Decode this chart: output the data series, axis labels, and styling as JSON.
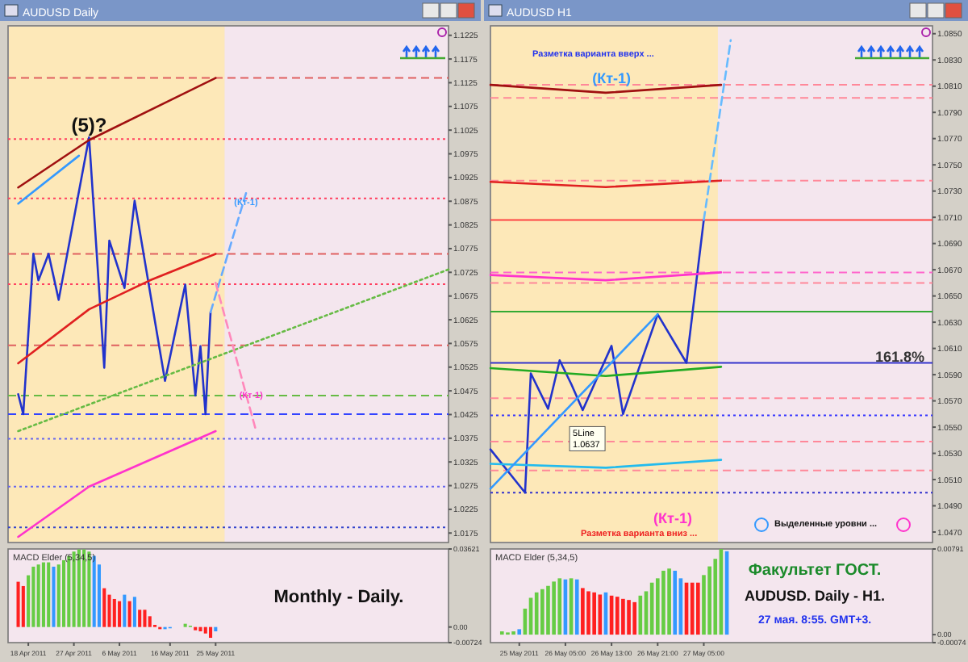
{
  "chart_data": [
    {
      "type": "line",
      "title": "AUDUSD Daily",
      "xlim": [
        "2011-04-14",
        "2011-07-10"
      ],
      "ylim": [
        1.0155,
        1.1245
      ],
      "tick_labels": "y",
      "yticks": [
        1.0175,
        1.0225,
        1.0275,
        1.0325,
        1.0375,
        1.0425,
        1.0475,
        1.0525,
        1.0575,
        1.0625,
        1.0675,
        1.0725,
        1.0775,
        1.0825,
        1.0875,
        1.0925,
        1.0975,
        1.1025,
        1.1075,
        1.1125,
        1.1175,
        1.1225
      ],
      "series": [
        {
          "color": "#2233cc",
          "x": [
            "2011-04-16",
            "2011-04-17",
            "2011-04-19",
            "2011-04-20",
            "2011-04-22",
            "2011-04-24",
            "2011-04-30",
            "2011-05-03",
            "2011-05-04",
            "2011-05-07",
            "2011-05-09",
            "2011-05-15",
            "2011-05-19",
            "2011-05-21",
            "2011-05-22",
            "2011-05-23",
            "2011-05-24"
          ],
          "values": [
            1.0468,
            1.0426,
            1.0764,
            1.0708,
            1.0764,
            1.0667,
            1.101,
            1.0524,
            1.0792,
            1.0692,
            1.0876,
            1.0496,
            1.0699,
            1.0465,
            1.0569,
            1.0426,
            1.0641
          ]
        },
        {
          "color": "#a01010",
          "x": [
            "2011-04-16",
            "2011-04-30",
            "2011-05-25"
          ],
          "values": [
            1.0904,
            1.1004,
            1.1135
          ]
        },
        {
          "color": "#e02020",
          "x": [
            "2011-04-16",
            "2011-04-30",
            "2011-05-12",
            "2011-05-25"
          ],
          "values": [
            1.0533,
            1.0647,
            1.0708,
            1.0764
          ]
        },
        {
          "color": "#ff33cc",
          "x": [
            "2011-04-16",
            "2011-04-30",
            "2011-05-25"
          ],
          "values": [
            1.0167,
            1.0273,
            1.039
          ]
        },
        {
          "color": "#66bb44",
          "line_style": "dotted",
          "x": [
            "2011-04-16",
            "2011-07-10"
          ],
          "values": [
            1.039,
            1.0731
          ]
        },
        {
          "color": "#3399ff",
          "x": [
            "2011-04-16",
            "2011-04-28"
          ],
          "values": [
            1.087,
            1.0971
          ]
        },
        {
          "color": "#66aaff",
          "line_style": "dashed",
          "x": [
            "2011-05-24",
            "2011-05-31"
          ],
          "values": [
            1.0641,
            1.0892
          ]
        },
        {
          "color": "#ff88bb",
          "line_style": "dashed",
          "x": [
            "2011-05-25",
            "2011-06-02"
          ],
          "values": [
            1.0703,
            1.039
          ]
        }
      ],
      "ref_lines": [
        {
          "axis": "y",
          "value": 1.1135,
          "color": "#e06060",
          "line_style": "dashed"
        },
        {
          "axis": "y",
          "value": 1.1006,
          "color": "#ff4060",
          "line_style": "dotted"
        },
        {
          "axis": "y",
          "value": 1.0881,
          "color": "#ff4060",
          "line_style": "dotted"
        },
        {
          "axis": "y",
          "value": 1.0764,
          "color": "#e06060",
          "line_style": "dashed"
        },
        {
          "axis": "y",
          "value": 1.07,
          "color": "#ff4060",
          "line_style": "dotted"
        },
        {
          "axis": "y",
          "value": 1.0571,
          "color": "#e06060",
          "line_style": "dashed"
        },
        {
          "axis": "y",
          "value": 1.0465,
          "color": "#66bb44",
          "line_style": "dashed"
        },
        {
          "axis": "y",
          "value": 1.0426,
          "color": "#3344ff",
          "line_style": "dashed"
        },
        {
          "axis": "y",
          "value": 1.0374,
          "color": "#6666ee",
          "line_style": "dotted"
        },
        {
          "axis": "y",
          "value": 1.0273,
          "color": "#6666ee",
          "line_style": "dotted"
        },
        {
          "axis": "y",
          "value": 1.0187,
          "color": "#3344cc",
          "line_style": "dotted"
        }
      ],
      "annotations": [
        {
          "text": "(5)?",
          "x": "2011-04-30",
          "y": 1.101
        },
        {
          "text": "(Кт-1)",
          "x": "2011-05-31",
          "y": 1.0862
        },
        {
          "text": "(Кт-1)",
          "x": "2011-06-01",
          "y": 1.0455
        }
      ]
    },
    {
      "type": "line",
      "title": "AUDUSD H1",
      "xlim": [
        "2011-05-25T16:00",
        "2011-05-28T20:40"
      ],
      "ylim": [
        1.0462,
        1.0856
      ],
      "tick_labels": "y",
      "yticks": [
        {
          "value": 1.047,
          "label": "1.0470"
        },
        {
          "value": 1.049,
          "label": "1.0490"
        },
        {
          "value": 1.051,
          "label": "1.0510"
        },
        {
          "value": 1.053,
          "label": "1.0530"
        },
        {
          "value": 1.055,
          "label": "1.0550"
        },
        {
          "value": 1.057,
          "label": "1.0570"
        },
        {
          "value": 1.059,
          "label": "1.0590"
        },
        {
          "value": 1.061,
          "label": "1.0610"
        },
        {
          "value": 1.063,
          "label": "1.0630"
        },
        {
          "value": 1.065,
          "label": "1.0650"
        },
        {
          "value": 1.067,
          "label": "1.0670"
        },
        {
          "value": 1.069,
          "label": "1.0690"
        },
        {
          "value": 1.071,
          "label": "1.0710"
        },
        {
          "value": 1.073,
          "label": "1.0730"
        },
        {
          "value": 1.075,
          "label": "1.0750"
        },
        {
          "value": 1.077,
          "label": "1.0770"
        },
        {
          "value": 1.079,
          "label": "1.0790"
        },
        {
          "value": 1.081,
          "label": "1.0810"
        },
        {
          "value": 1.083,
          "label": "1.0830"
        },
        {
          "value": 1.085,
          "label": "1.0850"
        }
      ],
      "series": [
        {
          "color": "#2233cc",
          "x": [
            "2011-05-25T16:00",
            "2011-05-25T22:00",
            "2011-05-25T23:00",
            "2011-05-26T02:00",
            "2011-05-26T04:00",
            "2011-05-26T06:00",
            "2011-05-26T08:00",
            "2011-05-26T13:00",
            "2011-05-26T15:00",
            "2011-05-26T21:00",
            "2011-05-27T02:00",
            "2011-05-27T05:00"
          ],
          "values": [
            1.0533,
            1.05,
            1.0591,
            1.0564,
            1.0601,
            1.0583,
            1.0563,
            1.0612,
            1.056,
            1.0636,
            1.0599,
            1.0708
          ]
        },
        {
          "color": "#a01010",
          "x": [
            "2011-05-25T16:00",
            "2011-05-26T12:00",
            "2011-05-27T08:00"
          ],
          "values": [
            1.0811,
            1.0805,
            1.0811
          ]
        },
        {
          "color": "#e02020",
          "x": [
            "2011-05-25T16:00",
            "2011-05-26T12:00",
            "2011-05-27T08:00"
          ],
          "values": [
            1.0737,
            1.0733,
            1.0738
          ]
        },
        {
          "color": "#ff33cc",
          "x": [
            "2011-05-25T16:00",
            "2011-05-26T12:00",
            "2011-05-27T08:00"
          ],
          "values": [
            1.0666,
            1.0662,
            1.0668
          ]
        },
        {
          "color": "#22aa22",
          "x": [
            "2011-05-25T16:00",
            "2011-05-26T12:00",
            "2011-05-27T08:00"
          ],
          "values": [
            1.0595,
            1.0589,
            1.0596
          ]
        },
        {
          "color": "#22bbee",
          "x": [
            "2011-05-25T16:00",
            "2011-05-26T12:00",
            "2011-05-27T08:00"
          ],
          "values": [
            1.0522,
            1.0519,
            1.0525
          ]
        },
        {
          "color": "#3399ff",
          "x": [
            "2011-05-25T16:00",
            "2011-05-26T21:00"
          ],
          "values": [
            1.0503,
            1.0636
          ]
        },
        {
          "color": "#66bbff",
          "line_style": "dashed",
          "x": [
            "2011-05-27T05:00",
            "2011-05-27T09:40"
          ],
          "values": [
            1.0708,
            1.0845
          ]
        }
      ],
      "ref_lines": [
        {
          "axis": "y",
          "value": 1.0811,
          "color": "#ff8899",
          "line_style": "dashed"
        },
        {
          "axis": "y",
          "value": 1.0801,
          "color": "#ff8899",
          "line_style": "dashed"
        },
        {
          "axis": "y",
          "value": 1.0738,
          "color": "#ff8899",
          "line_style": "dashed"
        },
        {
          "axis": "y",
          "value": 1.0708,
          "color": "#ff4444",
          "line_style": "solid"
        },
        {
          "axis": "y",
          "value": 1.0668,
          "color": "#ff66cc",
          "line_style": "dashed"
        },
        {
          "axis": "y",
          "value": 1.066,
          "color": "#ff8899",
          "line_style": "dashed"
        },
        {
          "axis": "y",
          "value": 1.0638,
          "color": "#33aa33",
          "line_style": "solid"
        },
        {
          "axis": "y",
          "value": 1.0599,
          "color": "#3333cc",
          "line_style": "solid"
        },
        {
          "axis": "y",
          "value": 1.0572,
          "color": "#ff8899",
          "line_style": "dashed"
        },
        {
          "axis": "y",
          "value": 1.0559,
          "color": "#3333ff",
          "line_style": "dotted"
        },
        {
          "axis": "y",
          "value": 1.0539,
          "color": "#ff8899",
          "line_style": "dashed"
        },
        {
          "axis": "y",
          "value": 1.0517,
          "color": "#ff8899",
          "line_style": "dashed"
        },
        {
          "axis": "y",
          "value": 1.05,
          "color": "#3333cc",
          "line_style": "dotted"
        }
      ],
      "annotations": [
        "Разметка варианта вверх ...",
        {
          "text": "(Кт-1)",
          "x": "2011-05-26T13:00",
          "y": 1.0816
        },
        {
          "text": "5Line 1.0637",
          "x": "2011-05-26T06:00",
          "y": 1.0543
        },
        {
          "text": "161.8%",
          "x": "2011-05-28T15:00",
          "y": 1.0604
        },
        "(Кт-1)",
        "Разметка варианта вниз ...",
        "Выделенные уровни ..."
      ]
    },
    {
      "type": "bar",
      "title": "MACD Elder (5,34,5)",
      "xlim": [
        "2011-04-14",
        "2011-07-10"
      ],
      "ylim": [
        -0.00724,
        0.03621
      ],
      "yticks": [
        -0.00724,
        {
          "value": 0,
          "label": "0.00"
        },
        0.03621
      ],
      "xticks": [
        {
          "value": "2011-04-18",
          "label": "18 Apr 2011"
        },
        {
          "value": "2011-04-27",
          "label": "27 Apr 2011"
        },
        {
          "value": "2011-05-06",
          "label": "6 May 2011"
        },
        {
          "value": "2011-05-16",
          "label": "16 May 2011"
        },
        {
          "value": "2011-05-25",
          "label": "25 May 2011"
        }
      ],
      "x": [
        "2011-04-16",
        "2011-04-17",
        "2011-04-18",
        "2011-04-19",
        "2011-04-20",
        "2011-04-21",
        "2011-04-22",
        "2011-04-23",
        "2011-04-24",
        "2011-04-25",
        "2011-04-26",
        "2011-04-27",
        "2011-04-28",
        "2011-04-29",
        "2011-04-30",
        "2011-05-01",
        "2011-05-02",
        "2011-05-03",
        "2011-05-04",
        "2011-05-05",
        "2011-05-06",
        "2011-05-07",
        "2011-05-08",
        "2011-05-09",
        "2011-05-10",
        "2011-05-11",
        "2011-05-12",
        "2011-05-13",
        "2011-05-14",
        "2011-05-15",
        "2011-05-16",
        "2011-05-17",
        "2011-05-19",
        "2011-05-20",
        "2011-05-21",
        "2011-05-22",
        "2011-05-23",
        "2011-05-24",
        "2011-05-25"
      ],
      "values": [
        0.021,
        0.019,
        0.024,
        0.028,
        0.029,
        0.03,
        0.03,
        0.028,
        0.029,
        0.031,
        0.033,
        0.035,
        0.036,
        0.036,
        0.035,
        0.033,
        0.029,
        0.018,
        0.015,
        0.013,
        0.012,
        0.015,
        0.012,
        0.014,
        0.008,
        0.008,
        0.005,
        0.001,
        -0.001,
        -0.001,
        -0.0006,
        0,
        0.0015,
        0.0006,
        -0.0015,
        -0.002,
        -0.003,
        -0.005,
        -0.002
      ],
      "colors": [
        "#ff2020",
        "#ff2020",
        "#66cc44",
        "#66cc44",
        "#66cc44",
        "#66cc44",
        "#66cc44",
        "#3399ff",
        "#66cc44",
        "#66cc44",
        "#66cc44",
        "#66cc44",
        "#66cc44",
        "#66cc44",
        "#66cc44",
        "#3399ff",
        "#3399ff",
        "#ff2020",
        "#ff2020",
        "#ff2020",
        "#ff2020",
        "#3399ff",
        "#ff2020",
        "#3399ff",
        "#ff2020",
        "#ff2020",
        "#ff2020",
        "#ff2020",
        "#ff2020",
        "#3399ff",
        "#3399ff",
        "#3399ff",
        "#66cc44",
        "#66cc44",
        "#ff2020",
        "#ff2020",
        "#ff2020",
        "#ff2020",
        "#3399ff"
      ],
      "annotations": [
        "Monthly - Daily."
      ]
    },
    {
      "type": "bar",
      "title": "MACD Elder (5,34,5)",
      "xlim": [
        "2011-05-25T16:00",
        "2011-05-28T20:40"
      ],
      "ylim": [
        -0.00074,
        0.00791
      ],
      "yticks": [
        -0.00074,
        {
          "value": 0,
          "label": "0.00"
        },
        0.00791
      ],
      "xticks": [
        {
          "value": "2011-05-25T21:00",
          "label": "25 May 2011"
        },
        {
          "value": "2011-05-26T05:00",
          "label": "26 May 05:00"
        },
        {
          "value": "2011-05-26T13:00",
          "label": "26 May 13:00"
        },
        {
          "value": "2011-05-26T21:00",
          "label": "26 May 21:00"
        },
        {
          "value": "2011-05-27T05:00",
          "label": "27 May 05:00"
        }
      ],
      "x": [
        "2011-05-25T18:00",
        "2011-05-25T19:00",
        "2011-05-25T20:00",
        "2011-05-25T21:00",
        "2011-05-25T22:00",
        "2011-05-25T23:00",
        "2011-05-26T00:00",
        "2011-05-26T01:00",
        "2011-05-26T02:00",
        "2011-05-26T03:00",
        "2011-05-26T04:00",
        "2011-05-26T05:00",
        "2011-05-26T06:00",
        "2011-05-26T07:00",
        "2011-05-26T08:00",
        "2011-05-26T09:00",
        "2011-05-26T10:00",
        "2011-05-26T11:00",
        "2011-05-26T12:00",
        "2011-05-26T13:00",
        "2011-05-26T14:00",
        "2011-05-26T15:00",
        "2011-05-26T16:00",
        "2011-05-26T17:00",
        "2011-05-26T18:00",
        "2011-05-26T19:00",
        "2011-05-26T20:00",
        "2011-05-26T21:00",
        "2011-05-26T22:00",
        "2011-05-26T23:00",
        "2011-05-27T00:00",
        "2011-05-27T01:00",
        "2011-05-27T02:00",
        "2011-05-27T03:00",
        "2011-05-27T04:00",
        "2011-05-27T05:00",
        "2011-05-27T06:00",
        "2011-05-27T07:00",
        "2011-05-27T08:00",
        "2011-05-27T09:00"
      ],
      "values": [
        0.0003,
        0.0002,
        0.0003,
        0.0005,
        0.0024,
        0.0034,
        0.0039,
        0.0042,
        0.0045,
        0.0049,
        0.0052,
        0.0051,
        0.0052,
        0.0051,
        0.0043,
        0.004,
        0.0039,
        0.0037,
        0.0039,
        0.0036,
        0.0035,
        0.0033,
        0.0032,
        0.003,
        0.0036,
        0.004,
        0.0048,
        0.0052,
        0.0059,
        0.0061,
        0.0059,
        0.0052,
        0.0048,
        0.0048,
        0.0048,
        0.0055,
        0.0063,
        0.007,
        0.0079,
        0.0077
      ],
      "colors": [
        "#66cc44",
        "#66cc44",
        "#66cc44",
        "#3399ff",
        "#66cc44",
        "#66cc44",
        "#66cc44",
        "#66cc44",
        "#66cc44",
        "#66cc44",
        "#66cc44",
        "#3399ff",
        "#66cc44",
        "#3399ff",
        "#ff2020",
        "#ff2020",
        "#ff2020",
        "#ff2020",
        "#3399ff",
        "#ff2020",
        "#ff2020",
        "#ff2020",
        "#ff2020",
        "#ff2020",
        "#66cc44",
        "#66cc44",
        "#66cc44",
        "#66cc44",
        "#66cc44",
        "#66cc44",
        "#3399ff",
        "#3399ff",
        "#ff2020",
        "#ff2020",
        "#ff2020",
        "#66cc44",
        "#66cc44",
        "#66cc44",
        "#66cc44",
        "#3399ff"
      ],
      "annotations": [
        "Факультет ГОСТ.",
        "AUDUSD. Daily - H1.",
        "27 мая. 8:55. GMT+3."
      ]
    }
  ]
}
